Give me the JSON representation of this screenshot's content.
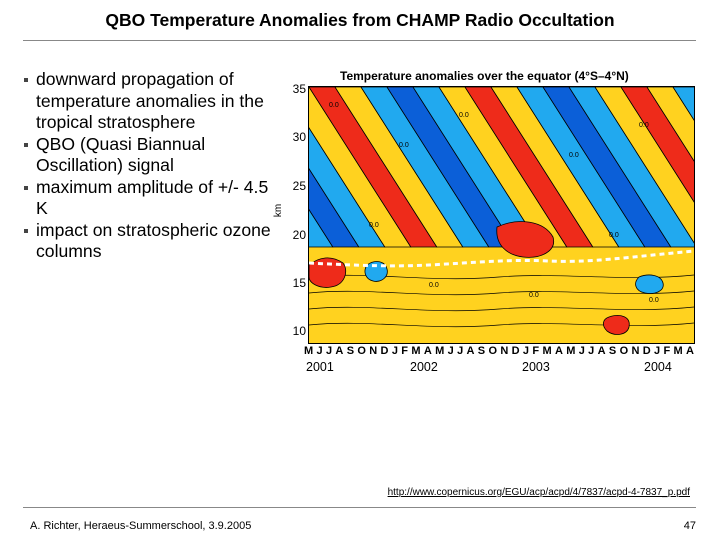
{
  "slide": {
    "title": "QBO Temperature Anomalies from CHAMP Radio Occultation",
    "bullets": [
      "downward propagation of temperature anomalies in the tropical stratosphere",
      "QBO (Quasi Biannual Oscillation) signal",
      "maximum amplitude of +/- 4.5 K",
      "impact on stratospheric ozone columns"
    ],
    "link": "http://www.copernicus.org/EGU/acp/acpd/4/7837/acpd-4-7837_p.pdf",
    "footer_left": "A. Richter, Heraeus-Summerschool, 3.9.2005",
    "page_number": "47"
  },
  "figure": {
    "title": "Temperature anomalies over the equator (4°S–4°N)",
    "y_axis_label": "km",
    "y_ticks": [
      "35",
      "30",
      "25",
      "20",
      "15",
      "10"
    ],
    "x_month_labels": [
      "M",
      "J",
      "J",
      "A",
      "S",
      "O",
      "N",
      "D",
      "J",
      "F",
      "M",
      "A",
      "M",
      "J",
      "J",
      "A",
      "S",
      "O",
      "N",
      "D",
      "J",
      "F",
      "M",
      "A",
      "M",
      "J",
      "J",
      "A",
      "S",
      "O",
      "N",
      "D",
      "J",
      "F",
      "M",
      "A"
    ],
    "x_year_labels": [
      "2001",
      "2002",
      "2003",
      "2004"
    ],
    "contour_label": "0.0",
    "colors": {
      "warm": "#ee2b1a",
      "positive": "#ffd21f",
      "negative": "#21a9ef",
      "cold": "#0b5fd8",
      "contour": "#000000",
      "tropopause": "#ffffff"
    }
  }
}
